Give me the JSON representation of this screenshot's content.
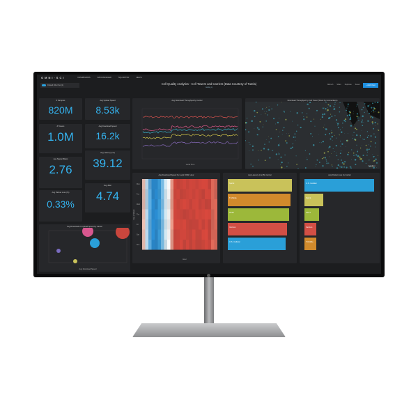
{
  "app": {
    "brand": "OMNI·SCI",
    "nav": [
      "DASHBOARDS",
      "DATA MANAGER",
      "SQL EDITOR",
      "HELP ▾"
    ],
    "filter": "Default Filter Set (1)",
    "title": "Cell Quality Analytics - Cell Towers and Carriers (Data Courtesy of Tutela)",
    "subtitle": "tutela_cq",
    "tools": [
      "Refresh",
      "Share",
      "Duplicate",
      "Save ▾"
    ],
    "add_chart": "+ Add Chart"
  },
  "kpis": [
    {
      "label": "# Samples",
      "value": "820M"
    },
    {
      "label": "# Towers",
      "value": "1.0M"
    },
    {
      "label": "Avg Signal (Bars)",
      "value": "2.76"
    },
    {
      "label": "Avg Packet Loss (%)",
      "value": "0.33%"
    },
    {
      "label": "Avg Upload Speed",
      "value": "8.53k"
    },
    {
      "label": "Avg Download Speed",
      "value": "16.2k"
    },
    {
      "label": "Avg Latency (ms)",
      "value": "39.12"
    },
    {
      "label": "Avg Jitter",
      "value": "4.74"
    }
  ],
  "scatter": {
    "title": "Avg Download vs Upload Speed by Carrier",
    "xlabel": "Avg Download Speed",
    "ylabel": "Avg Upload Speed"
  },
  "line": {
    "title": "Avg Download Throughput by Carrier",
    "xlabel": "Local Time",
    "ylabel": "Download Throughput",
    "colors": [
      "#d9534f",
      "#e05a8a",
      "#3bb0c9",
      "#d6c94a",
      "#8a6cc0"
    ]
  },
  "map": {
    "title": "Download Throughput by Cell Tower (Sized by Connections)",
    "attribution": "mapbox"
  },
  "heatmap": {
    "title": "Avg Download Speed by Local DOW, Hour",
    "xlabel": "Hour",
    "ylabel": "Day of Week",
    "rows": [
      "Mon",
      "Tue",
      "Wed",
      "Thu",
      "Fri",
      "Sat",
      "Sun"
    ]
  },
  "latency": {
    "title": "Avg Latency (ms) By Carrier",
    "bars": [
      {
        "label": "Sprint",
        "value": 1.0,
        "color": "#c9c25a"
      },
      {
        "label": "T-Mobile",
        "value": 0.98,
        "color": "#d18a2c"
      },
      {
        "label": "AT&T",
        "value": 0.96,
        "color": "#9cb83a"
      },
      {
        "label": "Verizon",
        "value": 0.92,
        "color": "#d24f45"
      },
      {
        "label": "U.S. Cellular",
        "value": 0.9,
        "color": "#2a9fd8"
      }
    ]
  },
  "packet": {
    "title": "Avg Packet Loss by Carrier",
    "bars": [
      {
        "label": "U.S. Cellular",
        "value": 1.0,
        "color": "#2a9fd8"
      },
      {
        "label": "Sprint",
        "value": 0.27,
        "color": "#c9c25a"
      },
      {
        "label": "AT&T",
        "value": 0.21,
        "color": "#9cb83a"
      },
      {
        "label": "Verizon",
        "value": 0.17,
        "color": "#d24f45"
      },
      {
        "label": "T-Mobile",
        "value": 0.17,
        "color": "#d18a2c"
      }
    ]
  }
}
